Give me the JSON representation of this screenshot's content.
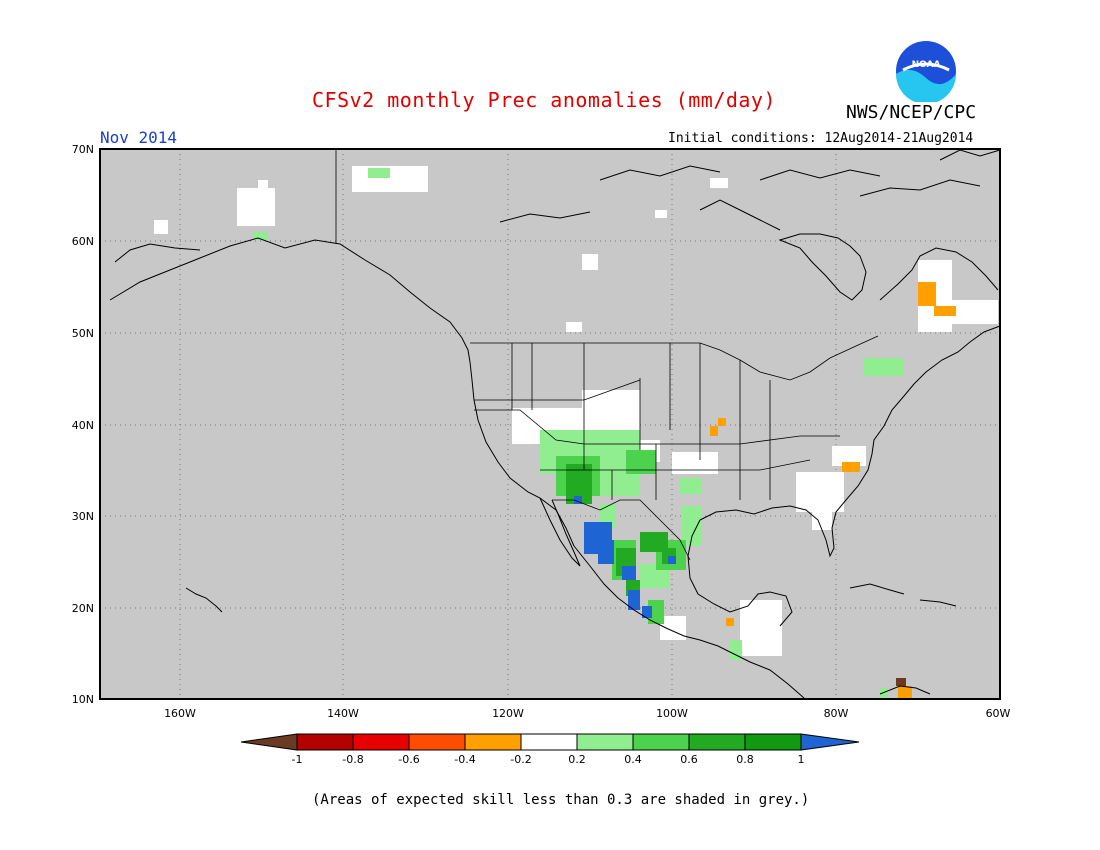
{
  "title": "CFSv2 monthly Prec anomalies (mm/day)",
  "org": "NWS/NCEP/CPC",
  "logo_text": "NOAA",
  "month": "Nov 2014",
  "initial_conditions": "Initial conditions: 12Aug2014-21Aug2014",
  "lat_labels": [
    "70N",
    "60N",
    "50N",
    "40N",
    "30N",
    "20N",
    "10N"
  ],
  "lon_labels": [
    "160W",
    "140W",
    "120W",
    "100W",
    "80W",
    "60W"
  ],
  "colorbar": {
    "labels": [
      "-1",
      "-0.8",
      "-0.6",
      "-0.4",
      "-0.2",
      "0.2",
      "0.4",
      "0.6",
      "0.8",
      "1"
    ],
    "colors": [
      "#6b3a23",
      "#b30000",
      "#e60000",
      "#ff4d00",
      "#ffa000",
      "#ffffff",
      "#90ee90",
      "#4dd24d",
      "#22aa22",
      "#119911",
      "#1e64d2"
    ]
  },
  "note": "(Areas of expected skill less than 0.3 are shaded in grey.)",
  "colors": {
    "grey": "#c8c8c8",
    "title": "#e00000",
    "month": "#1a3fd0"
  }
}
